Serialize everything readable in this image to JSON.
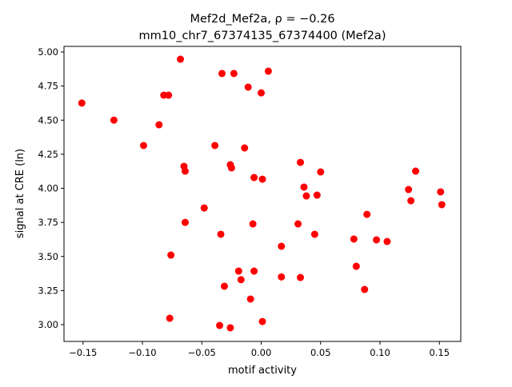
{
  "chart_data": {
    "type": "scatter",
    "title_line1": "Mef2d_Mef2a, ρ = −0.26",
    "title_line2": "mm10_chr7_67374135_67374400 (Mef2a)",
    "xlabel": "motif activity",
    "ylabel": "signal at CRE (ln)",
    "xlim": [
      -0.166,
      0.168
    ],
    "ylim": [
      2.877,
      5.041
    ],
    "xticks": [
      -0.15,
      -0.1,
      -0.05,
      0.0,
      0.05,
      0.1,
      0.15
    ],
    "xtick_labels": [
      "−0.15",
      "−0.10",
      "−0.05",
      "0.00",
      "0.05",
      "0.10",
      "0.15"
    ],
    "yticks": [
      3.0,
      3.25,
      3.5,
      3.75,
      4.0,
      4.25,
      4.5,
      4.75,
      5.0
    ],
    "ytick_labels": [
      "3.00",
      "3.25",
      "3.50",
      "3.75",
      "4.00",
      "4.25",
      "4.50",
      "4.75",
      "5.00"
    ],
    "grid": false,
    "marker_color": "#ff0000",
    "points": [
      [
        -0.151,
        4.625
      ],
      [
        -0.124,
        4.5
      ],
      [
        -0.099,
        4.314
      ],
      [
        -0.086,
        4.466
      ],
      [
        -0.082,
        4.683
      ],
      [
        -0.078,
        4.683
      ],
      [
        -0.068,
        4.947
      ],
      [
        -0.065,
        4.161
      ],
      [
        -0.064,
        4.126
      ],
      [
        -0.064,
        3.75
      ],
      [
        -0.076,
        3.51
      ],
      [
        -0.077,
        3.047
      ],
      [
        -0.048,
        3.856
      ],
      [
        -0.039,
        4.314
      ],
      [
        -0.033,
        4.842
      ],
      [
        -0.023,
        4.842
      ],
      [
        -0.034,
        3.663
      ],
      [
        -0.031,
        3.282
      ],
      [
        -0.035,
        2.994
      ],
      [
        -0.026,
        2.977
      ],
      [
        -0.026,
        4.173
      ],
      [
        -0.025,
        4.15
      ],
      [
        -0.014,
        4.296
      ],
      [
        -0.011,
        4.742
      ],
      [
        0.0,
        4.7
      ],
      [
        0.006,
        4.859
      ],
      [
        -0.006,
        4.079
      ],
      [
        0.001,
        4.067
      ],
      [
        -0.007,
        3.739
      ],
      [
        -0.019,
        3.393
      ],
      [
        -0.017,
        3.33
      ],
      [
        -0.006,
        3.393
      ],
      [
        -0.009,
        3.188
      ],
      [
        0.001,
        3.023
      ],
      [
        0.017,
        3.575
      ],
      [
        0.017,
        3.35
      ],
      [
        0.033,
        4.19
      ],
      [
        0.036,
        4.009
      ],
      [
        0.038,
        3.944
      ],
      [
        0.031,
        3.739
      ],
      [
        0.033,
        3.346
      ],
      [
        0.047,
        3.95
      ],
      [
        0.05,
        4.12
      ],
      [
        0.045,
        3.663
      ],
      [
        0.078,
        3.628
      ],
      [
        0.08,
        3.428
      ],
      [
        0.089,
        3.809
      ],
      [
        0.087,
        3.258
      ],
      [
        0.097,
        3.622
      ],
      [
        0.106,
        3.61
      ],
      [
        0.124,
        3.991
      ],
      [
        0.126,
        3.909
      ],
      [
        0.13,
        4.126
      ],
      [
        0.151,
        3.974
      ],
      [
        0.152,
        3.88
      ]
    ]
  }
}
